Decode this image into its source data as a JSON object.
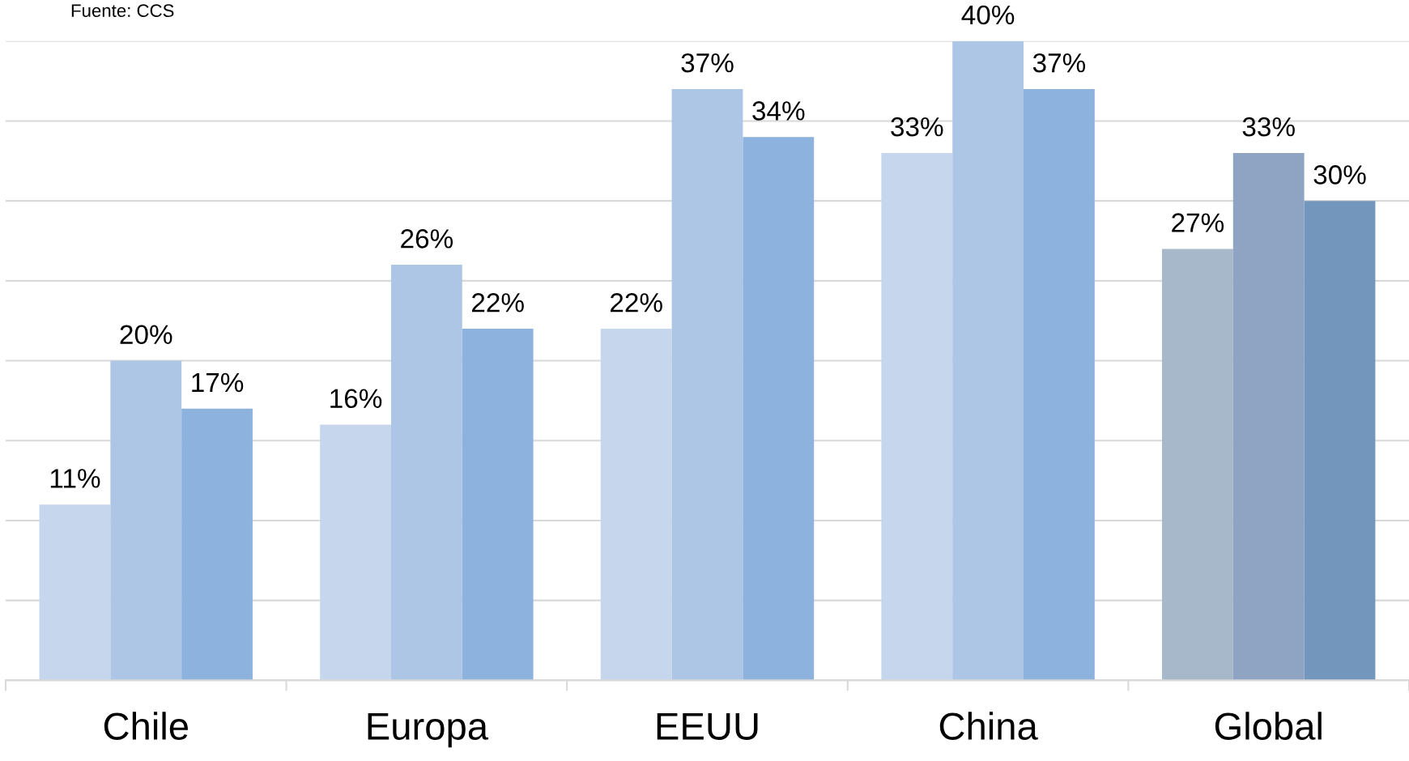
{
  "chart_data": {
    "type": "bar",
    "categories": [
      "Chile",
      "Europa",
      "EEUU",
      "China",
      "Global"
    ],
    "series": [
      {
        "colors": [
          "#c6d7ed",
          "#c6d7ed",
          "#c6d7ed",
          "#c6d7ed",
          "#a8b8cb"
        ],
        "values": [
          11,
          16,
          22,
          33,
          27
        ],
        "value_labels": [
          "11%",
          "16%",
          "22%",
          "33%",
          "27%"
        ]
      },
      {
        "colors": [
          "#aec6e6",
          "#aec6e6",
          "#aec6e6",
          "#aec6e6",
          "#8fa4c3"
        ],
        "values": [
          20,
          26,
          37,
          40,
          33
        ],
        "value_labels": [
          "20%",
          "26%",
          "37%",
          "40%",
          "33%"
        ]
      },
      {
        "colors": [
          "#8db2dd",
          "#8db2dd",
          "#8db2dd",
          "#8db2dd",
          "#7396bd"
        ],
        "values": [
          17,
          22,
          34,
          37,
          30
        ],
        "value_labels": [
          "17%",
          "22%",
          "34%",
          "37%",
          "30%"
        ]
      }
    ],
    "ylim": [
      0,
      40
    ],
    "yticks": [
      {
        "value": 0,
        "label": null
      },
      {
        "value": 5,
        "label": null
      },
      {
        "value": 10,
        "label": null
      },
      {
        "value": 15,
        "label": null
      },
      {
        "value": 20,
        "label": null
      },
      {
        "value": 25,
        "label": null
      },
      {
        "value": 30,
        "label": null
      },
      {
        "value": 35,
        "label": null
      },
      {
        "value": 40,
        "label": null
      }
    ],
    "grid": "y",
    "legend": false,
    "tick_labels": "x",
    "annotations": [
      "Fuente: CCS"
    ]
  }
}
